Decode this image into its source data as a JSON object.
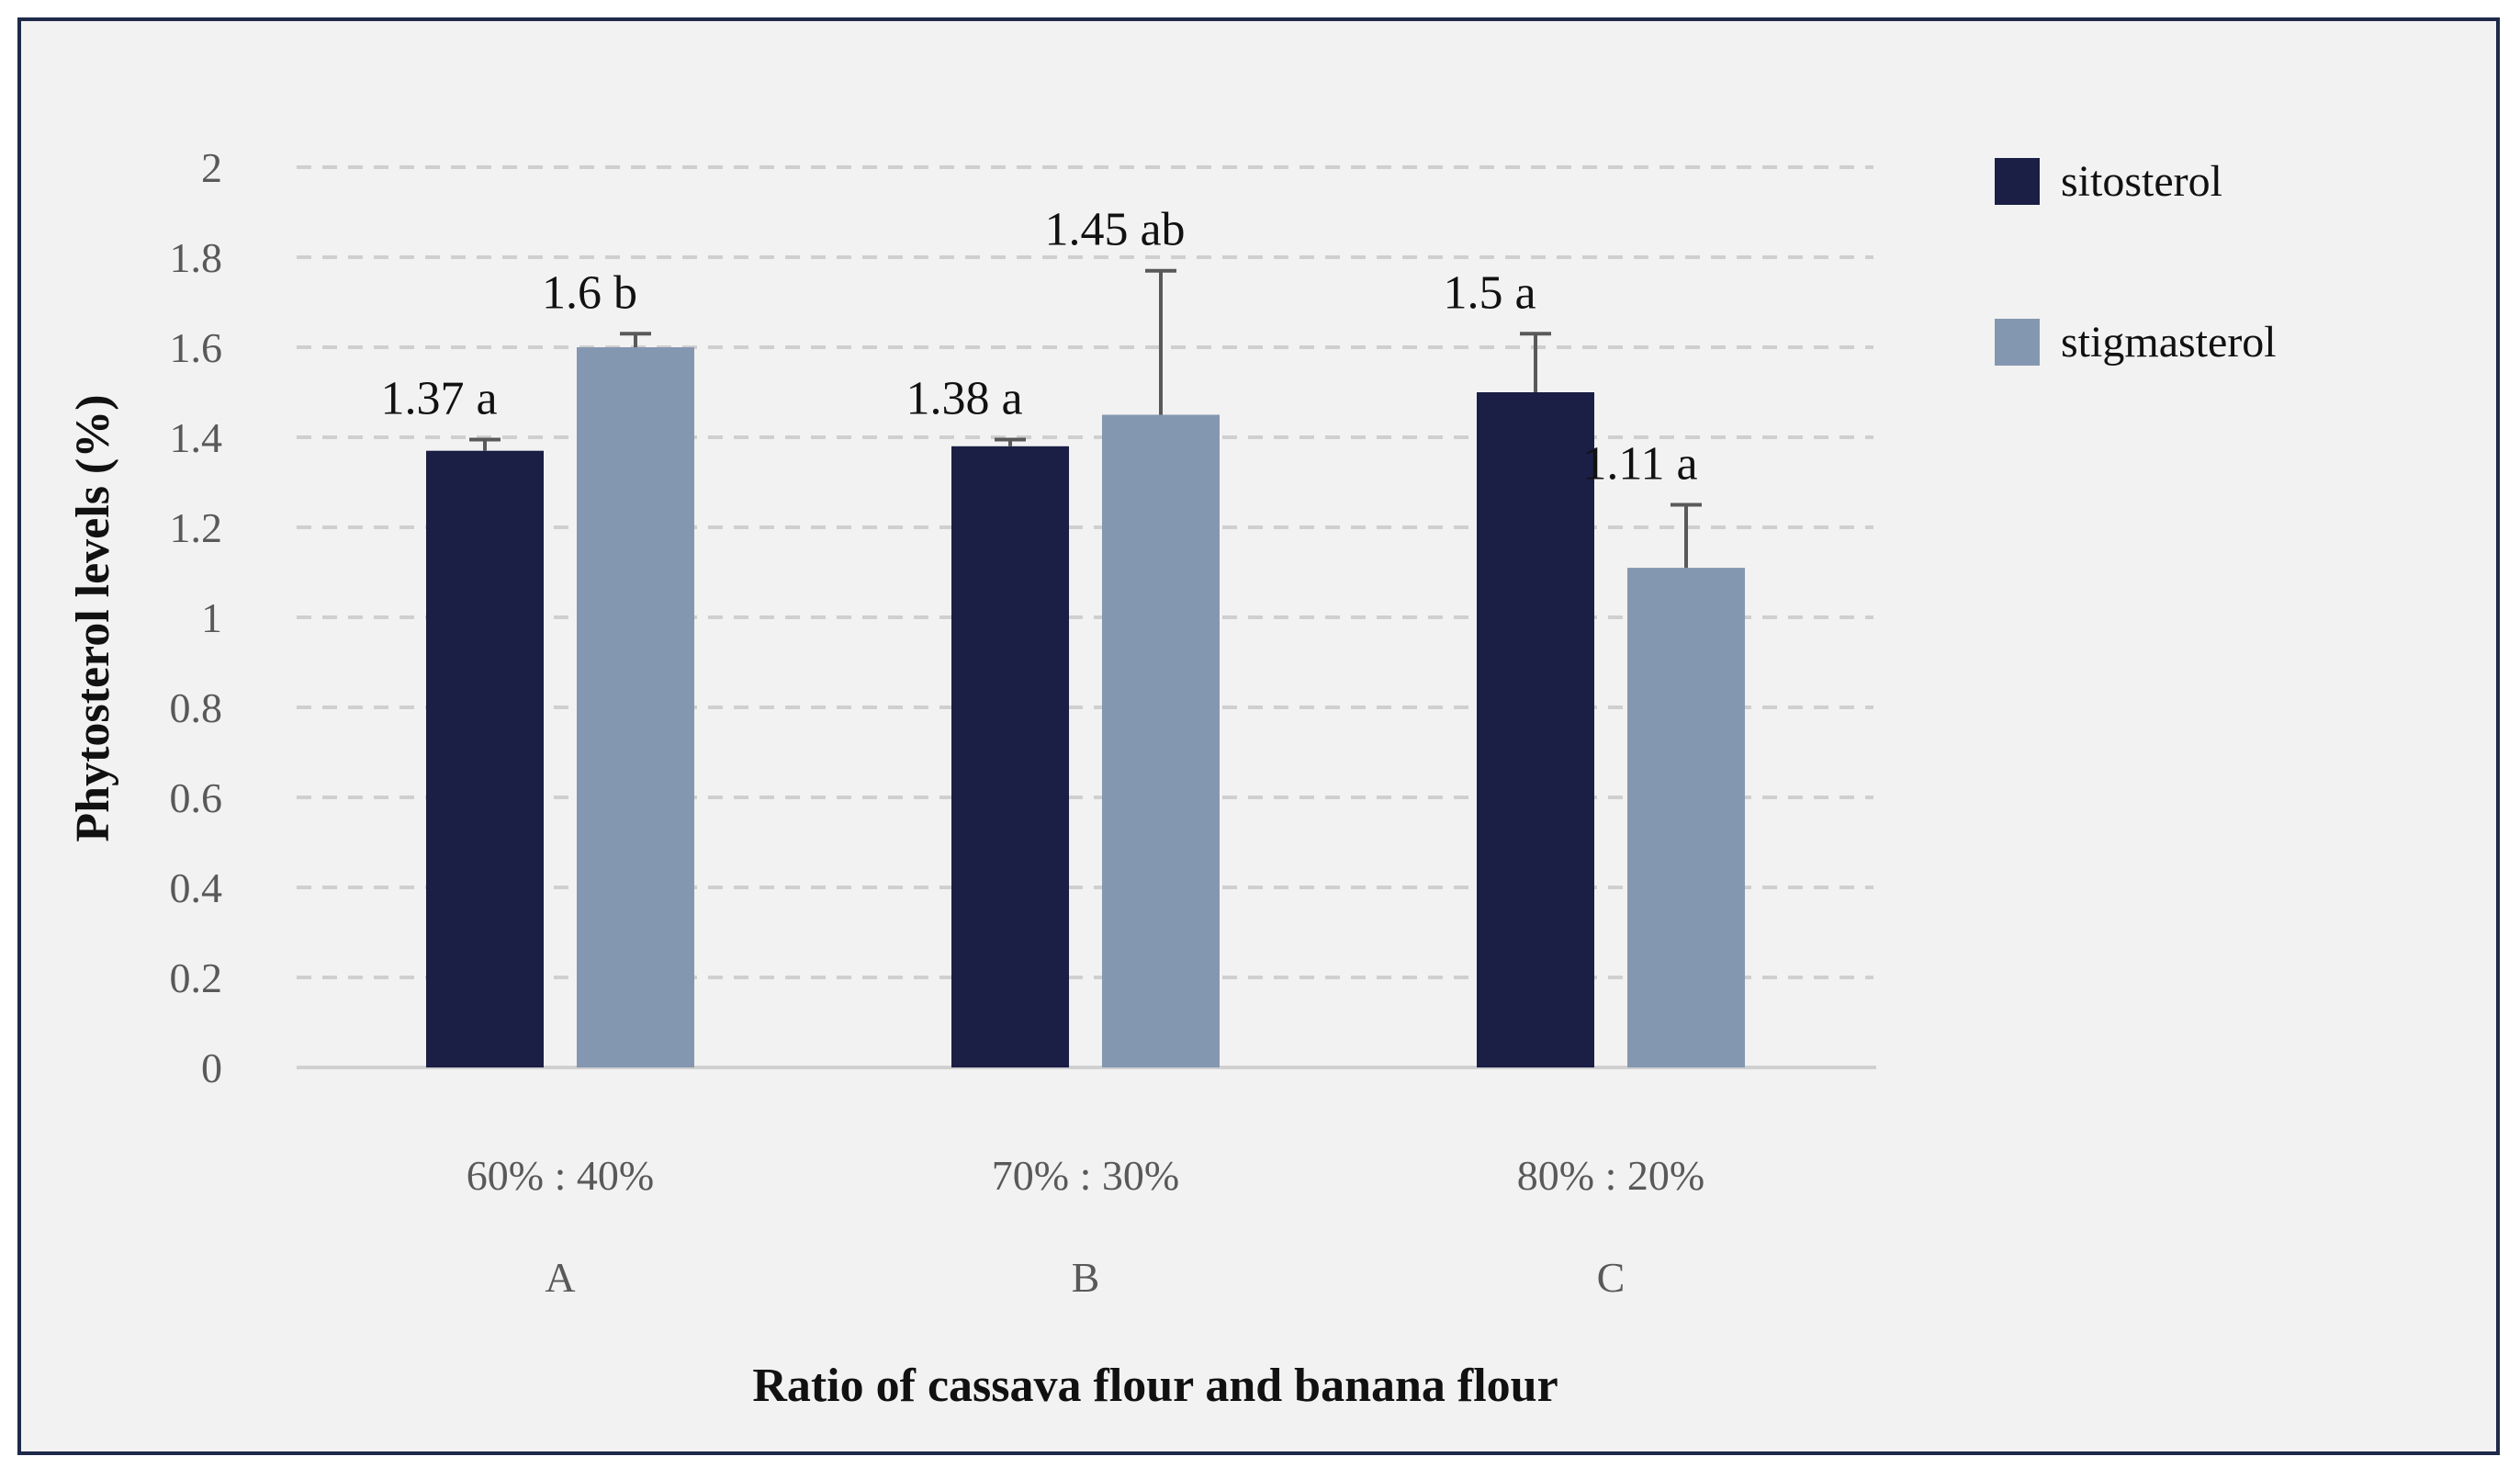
{
  "chart_data": {
    "type": "bar",
    "ylabel": "Phytosterol levels (%)",
    "xlabel": "Ratio of cassava flour and banana flour",
    "ylim": [
      0,
      2
    ],
    "ytick_step": 0.2,
    "yticks": [
      "0",
      "0.2",
      "0.4",
      "0.6",
      "0.8",
      "1",
      "1.2",
      "1.4",
      "1.6",
      "1.8",
      "2"
    ],
    "grid": true,
    "legend_position": "top-right",
    "categories": [
      "60% : 40%",
      "70% : 30%",
      "80% : 20%"
    ],
    "category_codes": [
      "A",
      "B",
      "C"
    ],
    "series": [
      {
        "name": "sitosterol",
        "color": "#1b1e45",
        "values": [
          1.37,
          1.38,
          1.5
        ],
        "error_plus": [
          0.025,
          0.015,
          0.13
        ],
        "labels": [
          "1.37 a",
          "1.38 a",
          "1.5 a"
        ]
      },
      {
        "name": "stigmasterol",
        "color": "#8497b0",
        "values": [
          1.6,
          1.45,
          1.11
        ],
        "error_plus": [
          0.03,
          0.32,
          0.14
        ],
        "labels": [
          "1.6 b",
          "1.45 ab",
          "1.11 a"
        ]
      }
    ]
  }
}
